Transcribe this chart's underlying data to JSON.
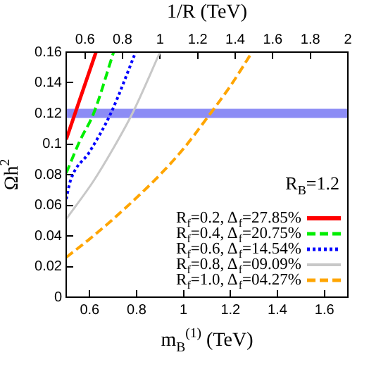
{
  "chart_data": {
    "type": "line",
    "xlabel": "m$_{B}$$^{(1)}$ (TeV)",
    "ylabel": "Ωh$^{2}$",
    "x2label": "1/R (TeV)",
    "xlim": [
      0.5,
      1.7
    ],
    "xticks": [
      0.6,
      0.8,
      1,
      1.2,
      1.4,
      1.6
    ],
    "x2lim": [
      0.5,
      2
    ],
    "x2ticks": [
      0.6,
      0.8,
      1,
      1.2,
      1.4,
      1.6,
      1.8,
      2
    ],
    "ylim": [
      0,
      0.16
    ],
    "yticks": [
      0,
      0.02,
      0.04,
      0.06,
      0.08,
      0.1,
      0.12,
      0.14,
      0.16
    ],
    "grid": false,
    "legend": "bottom right",
    "marker": "none",
    "bands": [
      {
        "axis": "y",
        "from": 0.117,
        "to": 0.123,
        "color": "#8c8cf5"
      }
    ],
    "annotations": [
      "R$_{B}$=1.2"
    ],
    "series": [
      {
        "name": "R$_{f}$=0.2, Δ$_{f}$=27.85%",
        "color": "#ff0000",
        "line_style": "solid",
        "x": [
          0.5,
          0.56,
          0.627
        ],
        "values": [
          0.103,
          0.13,
          0.16
        ]
      },
      {
        "name": "R$_{f}$=0.4, Δ$_{f}$=20.75%",
        "color": "#00ee00",
        "line_style": "dashed",
        "x": [
          0.5,
          0.558,
          0.617,
          0.702
        ],
        "values": [
          0.081,
          0.102,
          0.12,
          0.16
        ]
      },
      {
        "name": "R$_{f}$=0.6, Δ$_{f}$=14.54%",
        "color": "#0000ff",
        "line_style": "dotted",
        "x": [
          0.5,
          0.518,
          0.6,
          0.69,
          0.796
        ],
        "values": [
          0.064,
          0.076,
          0.095,
          0.12,
          0.16
        ]
      },
      {
        "name": "R$_{f}$=0.8, Δ$_{f}$=09.09%",
        "color": "#c8c8c8",
        "line_style": "solid",
        "x": [
          0.5,
          0.617,
          0.7,
          0.782,
          0.9
        ],
        "values": [
          0.051,
          0.076,
          0.097,
          0.12,
          0.16
        ]
      },
      {
        "name": "R$_{f}$=1.0, Δ$_{f}$=04.27%",
        "color": "#ffa500",
        "line_style": "dashed",
        "x": [
          0.5,
          0.6,
          0.7,
          0.8,
          0.9,
          1.0,
          1.1,
          1.2,
          1.292
        ],
        "values": [
          0.026,
          0.038,
          0.051,
          0.065,
          0.08,
          0.097,
          0.117,
          0.138,
          0.16
        ]
      }
    ]
  }
}
